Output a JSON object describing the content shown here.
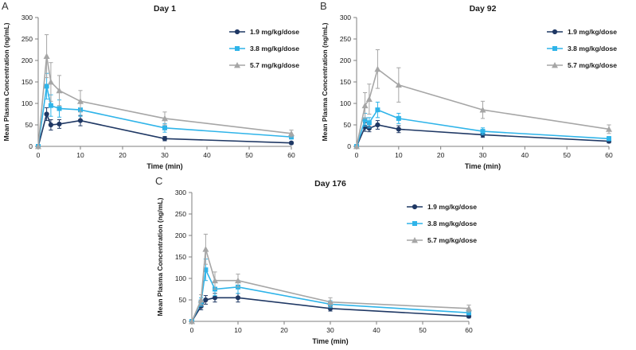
{
  "figure": {
    "background": "#ffffff",
    "axis_color": "#7f7f7f",
    "text_color": "#1a1a1a"
  },
  "chart_data": [
    {
      "type": "line",
      "panel_letter": "A",
      "title": "Day 1",
      "xlabel": "Time (min)",
      "ylabel": "Mean Plasma Concentration (ng/mL)",
      "xlim": [
        0,
        60
      ],
      "ylim": [
        0,
        300
      ],
      "xticks": [
        0,
        10,
        20,
        30,
        40,
        50,
        60
      ],
      "yticks": [
        0,
        50,
        100,
        150,
        200,
        250,
        300
      ],
      "legend_position": "upper-right",
      "grid": false,
      "x": [
        0,
        2,
        3,
        5,
        10,
        30,
        60
      ],
      "series": [
        {
          "name": "1.9 mg/kg/dose",
          "color": "#1F3864",
          "marker": "circle",
          "values": [
            0,
            75,
            50,
            52,
            60,
            18,
            8
          ],
          "errors": [
            0,
            15,
            12,
            10,
            12,
            5,
            3
          ]
        },
        {
          "name": "3.8 mg/kg/dose",
          "color": "#2FB4E9",
          "marker": "square",
          "values": [
            0,
            140,
            95,
            88,
            85,
            43,
            22
          ],
          "errors": [
            0,
            30,
            25,
            20,
            15,
            10,
            5
          ]
        },
        {
          "name": "5.7 mg/kg/dose",
          "color": "#A6A6A6",
          "marker": "triangle",
          "values": [
            0,
            210,
            150,
            130,
            105,
            65,
            30
          ],
          "errors": [
            0,
            50,
            45,
            35,
            25,
            15,
            8
          ]
        }
      ]
    },
    {
      "type": "line",
      "panel_letter": "B",
      "title": "Day 92",
      "xlabel": "Time (min)",
      "ylabel": "Mean Plasma Concentration (ng/mL)",
      "xlim": [
        0,
        60
      ],
      "ylim": [
        0,
        300
      ],
      "xticks": [
        0,
        10,
        20,
        30,
        40,
        50,
        60
      ],
      "yticks": [
        0,
        50,
        100,
        150,
        200,
        250,
        300
      ],
      "legend_position": "upper-right",
      "grid": false,
      "x": [
        0,
        2,
        3,
        5,
        10,
        30,
        60
      ],
      "series": [
        {
          "name": "1.9 mg/kg/dose",
          "color": "#1F3864",
          "marker": "circle",
          "values": [
            0,
            45,
            42,
            50,
            40,
            27,
            12
          ],
          "errors": [
            0,
            10,
            8,
            10,
            8,
            6,
            4
          ]
        },
        {
          "name": "3.8 mg/kg/dose",
          "color": "#2FB4E9",
          "marker": "square",
          "values": [
            0,
            62,
            55,
            85,
            65,
            35,
            18
          ],
          "errors": [
            0,
            15,
            12,
            18,
            12,
            8,
            5
          ]
        },
        {
          "name": "5.7 mg/kg/dose",
          "color": "#A6A6A6",
          "marker": "triangle",
          "values": [
            0,
            95,
            110,
            180,
            143,
            85,
            40
          ],
          "errors": [
            0,
            30,
            35,
            45,
            40,
            20,
            10
          ]
        }
      ]
    },
    {
      "type": "line",
      "panel_letter": "C",
      "title": "Day 176",
      "xlabel": "Time (min)",
      "ylabel": "Mean Plasma Concentration (ng/mL)",
      "xlim": [
        0,
        60
      ],
      "ylim": [
        0,
        300
      ],
      "xticks": [
        0,
        10,
        20,
        30,
        40,
        50,
        60
      ],
      "yticks": [
        0,
        50,
        100,
        150,
        200,
        250,
        300
      ],
      "legend_position": "upper-right",
      "grid": false,
      "x": [
        0,
        2,
        3,
        5,
        10,
        30,
        60
      ],
      "series": [
        {
          "name": "1.9 mg/kg/dose",
          "color": "#1F3864",
          "marker": "circle",
          "values": [
            0,
            35,
            50,
            55,
            55,
            30,
            12
          ],
          "errors": [
            0,
            8,
            10,
            10,
            10,
            6,
            4
          ]
        },
        {
          "name": "3.8 mg/kg/dose",
          "color": "#2FB4E9",
          "marker": "square",
          "values": [
            0,
            45,
            120,
            75,
            80,
            40,
            20
          ],
          "errors": [
            0,
            10,
            25,
            15,
            15,
            8,
            5
          ]
        },
        {
          "name": "5.7 mg/kg/dose",
          "color": "#A6A6A6",
          "marker": "triangle",
          "values": [
            0,
            50,
            168,
            95,
            95,
            45,
            30
          ],
          "errors": [
            0,
            12,
            35,
            20,
            15,
            10,
            8
          ]
        }
      ]
    }
  ]
}
